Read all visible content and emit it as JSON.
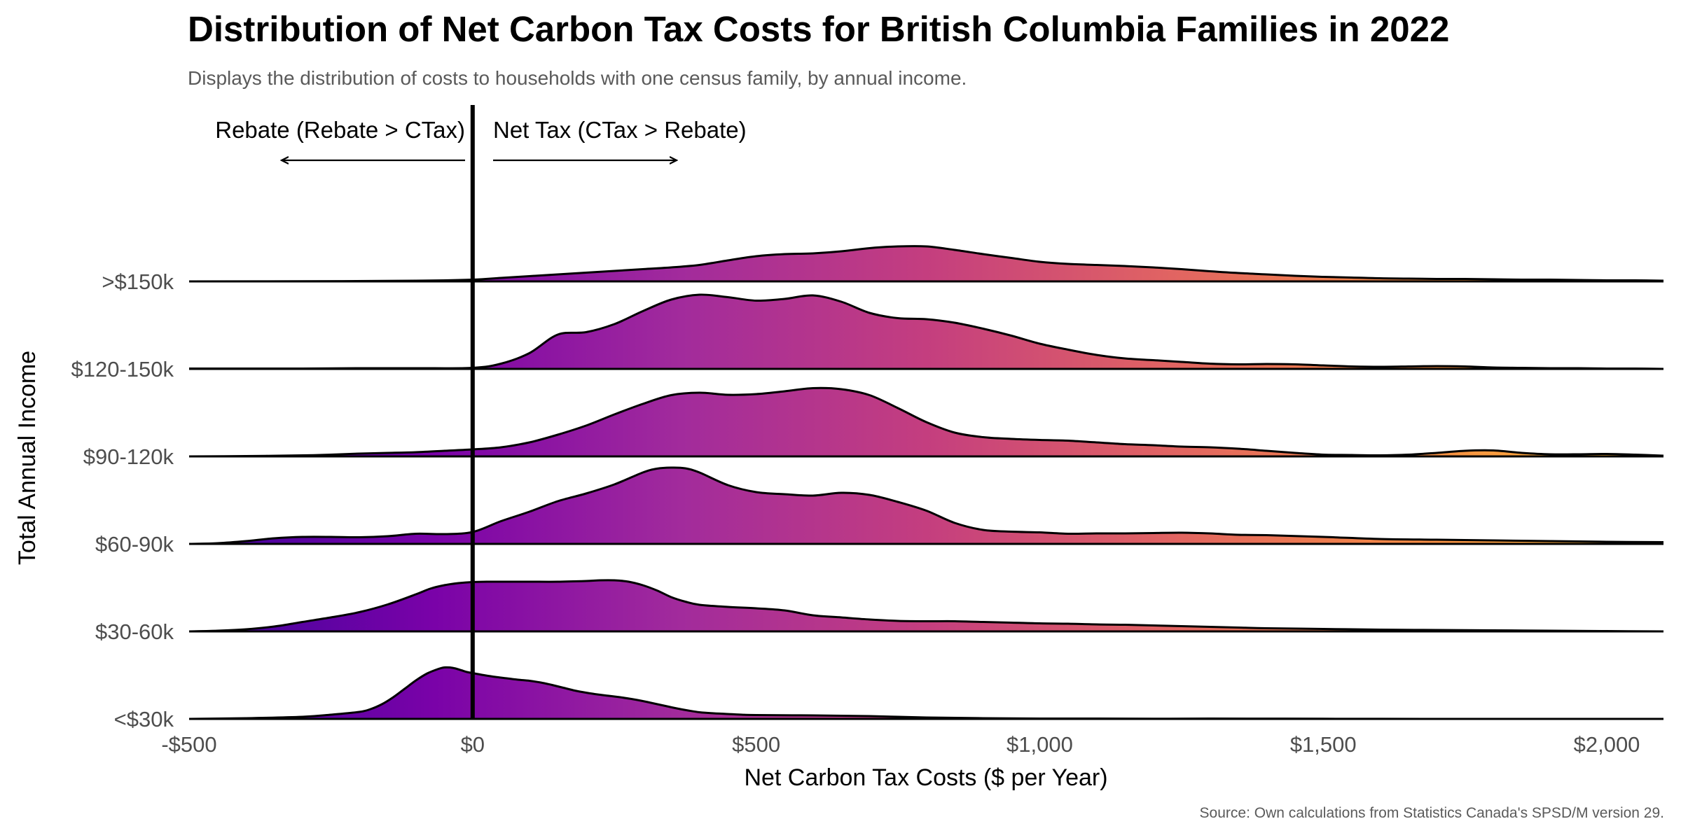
{
  "title": "Distribution of Net Carbon Tax Costs for British Columbia Families in 2022",
  "subtitle": "Displays the distribution of costs to households with one census family, by annual income.",
  "caption": "Source: Own calculations from Statistics Canada's SPSD/M version 29.",
  "annotations": {
    "left": "Rebate (Rebate > CTax)",
    "right": "Net Tax (CTax > Rebate)"
  },
  "colors": {
    "gradient": [
      "#3e049c",
      "#7a02a8",
      "#a22b9c",
      "#c43e7f",
      "#e16462",
      "#f58b44",
      "#fdbe33"
    ],
    "outline": "#000000",
    "zero_line": "#000000"
  },
  "chart_data": {
    "type": "ridgeline",
    "xlabel": "Net Carbon Tax Costs ($ per Year)",
    "ylabel": "Total Annual Income",
    "xlim": [
      -500,
      2100
    ],
    "xticks": [
      -500,
      0,
      500,
      1000,
      1500,
      2000
    ],
    "xtick_labels": [
      "-$500",
      "$0",
      "$500",
      "$1,000",
      "$1,500",
      "$2,000"
    ],
    "zero_line_x": 0,
    "categories": [
      "<$30k",
      "$30-60k",
      "$60-90k",
      "$90-120k",
      "$120-150k",
      ">$150k"
    ],
    "series": [
      {
        "name": "<$30k",
        "x": [
          -500,
          -400,
          -300,
          -250,
          -200,
          -180,
          -160,
          -140,
          -120,
          -100,
          -80,
          -60,
          -50,
          -40,
          -30,
          -20,
          -10,
          0,
          20,
          40,
          60,
          80,
          100,
          120,
          140,
          160,
          180,
          200,
          220,
          240,
          260,
          280,
          300,
          320,
          340,
          360,
          380,
          400,
          425,
          450,
          475,
          500,
          600,
          700,
          800,
          900,
          1000,
          1100,
          1200,
          1300,
          1500,
          1700,
          1900,
          2100
        ],
        "y": [
          0,
          0.02,
          0.06,
          0.12,
          0.2,
          0.28,
          0.42,
          0.62,
          0.86,
          1.1,
          1.3,
          1.43,
          1.47,
          1.47,
          1.44,
          1.39,
          1.34,
          1.31,
          1.25,
          1.2,
          1.16,
          1.12,
          1.09,
          1.04,
          0.97,
          0.89,
          0.81,
          0.75,
          0.7,
          0.66,
          0.62,
          0.57,
          0.51,
          0.44,
          0.37,
          0.3,
          0.24,
          0.19,
          0.16,
          0.14,
          0.12,
          0.11,
          0.1,
          0.08,
          0.04,
          0.02,
          0.01,
          0.01,
          0.005,
          0.01,
          0.005,
          0,
          0,
          0
        ]
      },
      {
        "name": "$30-60k",
        "x": [
          -500,
          -450,
          -400,
          -350,
          -300,
          -250,
          -200,
          -150,
          -100,
          -75,
          -50,
          -25,
          0,
          25,
          50,
          100,
          150,
          200,
          225,
          250,
          275,
          300,
          325,
          350,
          375,
          400,
          450,
          500,
          550,
          600,
          650,
          700,
          750,
          800,
          850,
          900,
          950,
          1000,
          1050,
          1100,
          1150,
          1200,
          1250,
          1300,
          1350,
          1400,
          1500,
          1600,
          1700,
          1800,
          1900,
          2000,
          2100
        ],
        "y": [
          0,
          0.02,
          0.06,
          0.14,
          0.27,
          0.4,
          0.55,
          0.77,
          1.06,
          1.22,
          1.32,
          1.38,
          1.41,
          1.42,
          1.42,
          1.42,
          1.42,
          1.44,
          1.46,
          1.46,
          1.42,
          1.32,
          1.17,
          0.98,
          0.85,
          0.76,
          0.7,
          0.66,
          0.6,
          0.46,
          0.4,
          0.34,
          0.3,
          0.29,
          0.29,
          0.27,
          0.25,
          0.23,
          0.22,
          0.2,
          0.19,
          0.17,
          0.15,
          0.13,
          0.11,
          0.09,
          0.07,
          0.05,
          0.04,
          0.03,
          0.02,
          0.01,
          0
        ]
      },
      {
        "name": "$60-90k",
        "x": [
          -500,
          -450,
          -400,
          -350,
          -300,
          -250,
          -200,
          -150,
          -100,
          -50,
          0,
          50,
          100,
          150,
          200,
          250,
          300,
          325,
          350,
          375,
          400,
          450,
          500,
          550,
          600,
          650,
          700,
          750,
          800,
          850,
          900,
          950,
          1000,
          1050,
          1100,
          1150,
          1200,
          1250,
          1300,
          1350,
          1400,
          1500,
          1600,
          1700,
          1800,
          1900,
          2000,
          2100
        ],
        "y": [
          0,
          0.02,
          0.08,
          0.16,
          0.2,
          0.2,
          0.19,
          0.22,
          0.29,
          0.28,
          0.34,
          0.65,
          0.92,
          1.22,
          1.44,
          1.7,
          2.04,
          2.15,
          2.18,
          2.16,
          2.04,
          1.68,
          1.48,
          1.42,
          1.38,
          1.46,
          1.4,
          1.2,
          0.95,
          0.6,
          0.4,
          0.35,
          0.33,
          0.29,
          0.3,
          0.3,
          0.31,
          0.32,
          0.3,
          0.26,
          0.25,
          0.2,
          0.14,
          0.12,
          0.1,
          0.08,
          0.06,
          0.05
        ]
      },
      {
        "name": "$90-120k",
        "x": [
          -500,
          -400,
          -300,
          -250,
          -200,
          -150,
          -100,
          -50,
          0,
          50,
          100,
          150,
          200,
          250,
          300,
          350,
          400,
          450,
          500,
          550,
          600,
          650,
          700,
          750,
          800,
          850,
          900,
          950,
          1000,
          1050,
          1100,
          1150,
          1200,
          1250,
          1300,
          1350,
          1400,
          1450,
          1500,
          1550,
          1600,
          1650,
          1700,
          1750,
          1800,
          1850,
          1900,
          1950,
          2000,
          2050,
          2100
        ],
        "y": [
          0,
          0.01,
          0.03,
          0.05,
          0.08,
          0.1,
          0.12,
          0.16,
          0.2,
          0.26,
          0.4,
          0.62,
          0.88,
          1.2,
          1.5,
          1.75,
          1.82,
          1.76,
          1.78,
          1.86,
          1.95,
          1.92,
          1.75,
          1.38,
          0.98,
          0.68,
          0.55,
          0.5,
          0.47,
          0.45,
          0.4,
          0.35,
          0.32,
          0.28,
          0.26,
          0.22,
          0.16,
          0.1,
          0.05,
          0.04,
          0.03,
          0.05,
          0.1,
          0.16,
          0.17,
          0.1,
          0.06,
          0.06,
          0.07,
          0.05,
          0.02
        ]
      },
      {
        "name": "$120-150k",
        "x": [
          -500,
          -400,
          -300,
          -200,
          -100,
          0,
          50,
          100,
          150,
          200,
          250,
          300,
          350,
          400,
          450,
          500,
          550,
          600,
          650,
          700,
          750,
          800,
          850,
          900,
          950,
          1000,
          1050,
          1100,
          1150,
          1200,
          1250,
          1300,
          1350,
          1400,
          1450,
          1500,
          1550,
          1600,
          1650,
          1700,
          1750,
          1800,
          1850,
          1900,
          1950,
          2000,
          2050,
          2100
        ],
        "y": [
          0.01,
          0.01,
          0.01,
          0.02,
          0.02,
          0.03,
          0.15,
          0.45,
          0.98,
          1.05,
          1.28,
          1.65,
          1.98,
          2.12,
          2.05,
          1.95,
          2.0,
          2.1,
          1.92,
          1.6,
          1.45,
          1.42,
          1.32,
          1.15,
          0.95,
          0.72,
          0.55,
          0.4,
          0.3,
          0.25,
          0.2,
          0.15,
          0.13,
          0.14,
          0.13,
          0.1,
          0.07,
          0.06,
          0.07,
          0.08,
          0.07,
          0.04,
          0.03,
          0.02,
          0.02,
          0.01,
          0.01,
          0
        ]
      },
      {
        "name": ">$150k",
        "x": [
          -500,
          -300,
          -100,
          0,
          50,
          100,
          150,
          200,
          250,
          300,
          350,
          400,
          450,
          500,
          550,
          600,
          650,
          700,
          750,
          800,
          850,
          900,
          950,
          1000,
          1050,
          1100,
          1150,
          1200,
          1250,
          1300,
          1350,
          1400,
          1450,
          1500,
          1550,
          1600,
          1650,
          1700,
          1750,
          1800,
          1850,
          1900,
          1950,
          2000,
          2050,
          2100
        ],
        "y": [
          0,
          0.005,
          0.02,
          0.05,
          0.1,
          0.15,
          0.2,
          0.25,
          0.3,
          0.35,
          0.4,
          0.47,
          0.6,
          0.72,
          0.78,
          0.8,
          0.86,
          0.95,
          1.0,
          1.0,
          0.9,
          0.78,
          0.67,
          0.56,
          0.5,
          0.47,
          0.44,
          0.4,
          0.35,
          0.29,
          0.24,
          0.2,
          0.16,
          0.13,
          0.11,
          0.09,
          0.08,
          0.07,
          0.07,
          0.06,
          0.05,
          0.05,
          0.04,
          0.03,
          0.03,
          0.02
        ]
      }
    ]
  }
}
